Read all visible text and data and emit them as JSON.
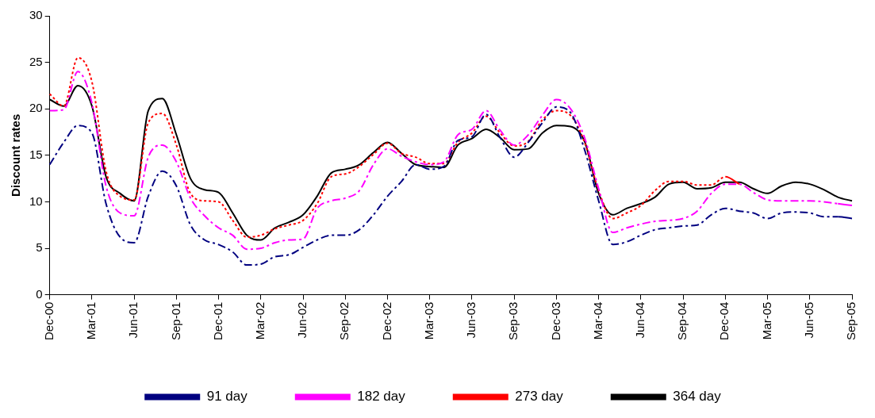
{
  "chart_data": {
    "type": "line",
    "ylabel": "Discount rates",
    "categories": [
      "Dec-00",
      null,
      null,
      "Mar-01",
      null,
      null,
      "Jun-01",
      null,
      null,
      "Sep-01",
      null,
      null,
      "Dec-01",
      null,
      null,
      "Mar-02",
      null,
      null,
      "Jun-02",
      null,
      null,
      "Sep-02",
      null,
      null,
      "Dec-02",
      null,
      null,
      "Mar-03",
      null,
      null,
      "Jun-03",
      null,
      null,
      "Sep-03",
      null,
      null,
      "Dec-03",
      null,
      null,
      "Mar-04",
      null,
      null,
      "Jun-04",
      null,
      null,
      "Sep-04",
      null,
      null,
      "Dec-04",
      null,
      null,
      "Mar-05",
      null,
      null,
      "Jun-05",
      null,
      null,
      "Sep-05"
    ],
    "series": [
      {
        "name": "91 day",
        "color": "#000080",
        "line_style": "dashed",
        "values": [
          14.0,
          16.4,
          18.2,
          17.4,
          9.8,
          6.2,
          5.6,
          10.6,
          13.3,
          11.7,
          7.5,
          5.9,
          5.4,
          4.6,
          3.2,
          3.3,
          4.1,
          4.3,
          5.1,
          5.9,
          6.4,
          6.4,
          7.0,
          8.6,
          10.6,
          12.2,
          14.0,
          13.5,
          13.8,
          16.6,
          17.0,
          19.4,
          16.9,
          14.8,
          16.4,
          18.5,
          20.2,
          19.6,
          15.6,
          10.1,
          5.4,
          5.7,
          6.4,
          7.0,
          7.2,
          7.4,
          7.5,
          8.6,
          9.3,
          9.0,
          8.8,
          8.2,
          8.8,
          8.9,
          8.8,
          8.4,
          8.4,
          8.2
        ]
      },
      {
        "name": "182 day",
        "color": "#ff00ff",
        "line_style": "dashed",
        "values": [
          19.8,
          19.9,
          24.0,
          20.6,
          11.7,
          8.8,
          8.5,
          14.8,
          16.1,
          14.3,
          10.4,
          8.5,
          7.2,
          6.4,
          4.9,
          5.0,
          5.6,
          5.9,
          6.0,
          9.3,
          10.1,
          10.4,
          11.2,
          14.0,
          15.7,
          14.9,
          14.3,
          14.0,
          14.3,
          17.2,
          17.8,
          19.8,
          17.7,
          16.1,
          17.2,
          19.3,
          21.0,
          20.0,
          16.9,
          11.4,
          6.7,
          7.2,
          7.6,
          7.9,
          8.0,
          8.2,
          9.0,
          10.9,
          11.9,
          11.9,
          11.0,
          10.2,
          10.1,
          10.1,
          10.1,
          10.0,
          9.8,
          9.6
        ]
      },
      {
        "name": "273 day",
        "color": "#ff0000",
        "line_style": "dotted",
        "values": [
          21.6,
          20.3,
          25.5,
          22.9,
          13.3,
          10.6,
          10.2,
          18.5,
          19.5,
          16.1,
          10.9,
          10.1,
          10.0,
          8.0,
          6.2,
          6.4,
          7.1,
          7.5,
          8.0,
          9.8,
          12.7,
          13.0,
          13.8,
          15.1,
          16.3,
          15.2,
          14.8,
          14.1,
          14.1,
          16.4,
          17.4,
          19.2,
          17.4,
          16.0,
          16.5,
          18.8,
          19.8,
          19.3,
          16.4,
          11.2,
          8.2,
          8.8,
          9.6,
          11.2,
          12.2,
          12.2,
          11.8,
          11.8,
          12.7,
          11.9,
          null,
          null,
          null,
          null,
          null,
          null,
          null,
          null
        ]
      },
      {
        "name": "364 day",
        "color": "#000000",
        "line_style": "solid",
        "values": [
          21.0,
          20.3,
          22.5,
          20.3,
          12.7,
          10.9,
          10.1,
          19.8,
          21.1,
          17.2,
          12.5,
          11.3,
          11.0,
          8.8,
          6.4,
          5.9,
          7.2,
          7.8,
          8.6,
          10.6,
          13.1,
          13.5,
          14.0,
          15.3,
          16.4,
          15.2,
          14.0,
          13.8,
          13.7,
          16.1,
          16.8,
          17.8,
          16.9,
          15.6,
          15.7,
          17.4,
          18.2,
          18.1,
          16.5,
          10.9,
          8.6,
          9.3,
          9.8,
          10.5,
          11.9,
          12.1,
          11.4,
          11.5,
          12.1,
          12.1,
          11.4,
          10.9,
          11.7,
          12.1,
          11.9,
          11.3,
          10.5,
          10.1
        ]
      }
    ],
    "ylim": [
      0,
      30
    ],
    "yticks": [
      0,
      5,
      10,
      15,
      20,
      25,
      30
    ],
    "grid": false,
    "legend": "bottom",
    "marker": "none"
  }
}
